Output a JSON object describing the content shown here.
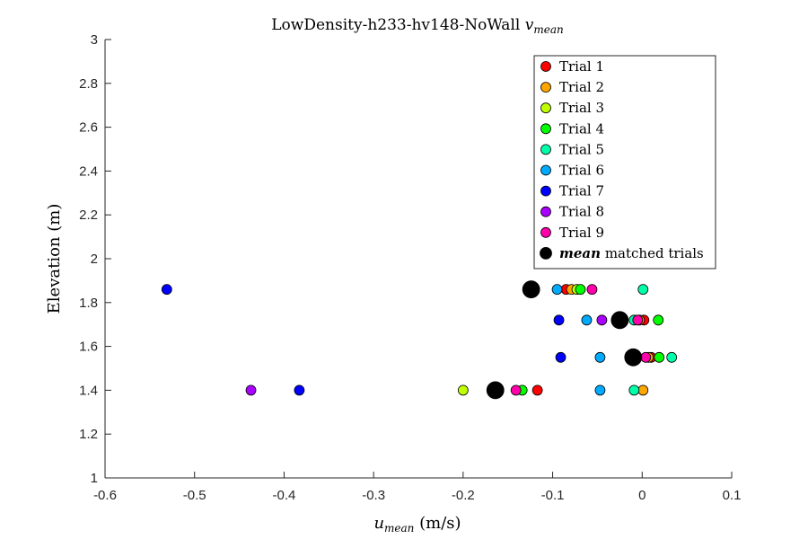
{
  "chart_data": {
    "type": "scatter",
    "title": "LowDensity-h233-hv148-NoWall ",
    "title_math": "v",
    "title_math_sub": "mean",
    "xlabel_math": "u",
    "xlabel_math_sub": "mean",
    "xlabel_unit": " (m/s)",
    "ylabel": "Elevation (m)",
    "xlim": [
      -0.6,
      0.1
    ],
    "ylim": [
      1,
      3
    ],
    "xticks": [
      -0.6,
      -0.5,
      -0.4,
      -0.3,
      -0.2,
      -0.1,
      0,
      0.1
    ],
    "xtick_labels": [
      "-0.6",
      "-0.5",
      "-0.4",
      "-0.3",
      "-0.2",
      "-0.1",
      "0",
      "0.1"
    ],
    "yticks": [
      1,
      1.2,
      1.4,
      1.6,
      1.8,
      2,
      2.2,
      2.4,
      2.6,
      2.8,
      3
    ],
    "ytick_labels": [
      "1",
      "1.2",
      "1.4",
      "1.6",
      "1.8",
      "2",
      "2.2",
      "2.4",
      "2.6",
      "2.8",
      "3"
    ],
    "grid": false,
    "legend_position": "top-right",
    "legend_mean_prefix": "mean",
    "legend_mean_suffix": " matched trials",
    "series": [
      {
        "name": "Trial 1",
        "color": "#ff0000",
        "points": [
          [
            -0.117,
            1.4
          ],
          [
            -0.085,
            1.86
          ],
          [
            0.002,
            1.72
          ],
          [
            0.01,
            1.55
          ]
        ]
      },
      {
        "name": "Trial 2",
        "color": "#ffa500",
        "points": [
          [
            0.001,
            1.4
          ],
          [
            -0.079,
            1.86
          ],
          [
            -0.003,
            1.72
          ],
          [
            0.007,
            1.55
          ]
        ]
      },
      {
        "name": "Trial 3",
        "color": "#bfff00",
        "points": [
          [
            -0.2,
            1.4
          ],
          [
            -0.073,
            1.86
          ]
        ]
      },
      {
        "name": "Trial 4",
        "color": "#00ff00",
        "points": [
          [
            -0.134,
            1.4
          ],
          [
            -0.069,
            1.86
          ],
          [
            0.018,
            1.72
          ],
          [
            0.019,
            1.55
          ]
        ]
      },
      {
        "name": "Trial 5",
        "color": "#00ffaa",
        "points": [
          [
            -0.009,
            1.4
          ],
          [
            0.001,
            1.86
          ],
          [
            -0.009,
            1.72
          ],
          [
            0.033,
            1.55
          ]
        ]
      },
      {
        "name": "Trial 6",
        "color": "#00aaff",
        "points": [
          [
            -0.047,
            1.4
          ],
          [
            -0.095,
            1.86
          ],
          [
            -0.062,
            1.72
          ],
          [
            -0.047,
            1.55
          ]
        ]
      },
      {
        "name": "Trial 7",
        "color": "#0000ff",
        "points": [
          [
            -0.383,
            1.4
          ],
          [
            -0.531,
            1.86
          ],
          [
            -0.093,
            1.72
          ],
          [
            -0.091,
            1.55
          ]
        ]
      },
      {
        "name": "Trial 8",
        "color": "#aa00ff",
        "points": [
          [
            -0.437,
            1.4
          ],
          [
            -0.045,
            1.72
          ]
        ]
      },
      {
        "name": "Trial 9",
        "color": "#ff00aa",
        "points": [
          [
            -0.141,
            1.4
          ],
          [
            -0.056,
            1.86
          ],
          [
            -0.005,
            1.72
          ],
          [
            0.004,
            1.55
          ]
        ]
      }
    ],
    "mean_series": {
      "color": "#000000",
      "points": [
        [
          -0.164,
          1.4
        ],
        [
          -0.124,
          1.86
        ],
        [
          -0.025,
          1.72
        ],
        [
          -0.01,
          1.55
        ]
      ]
    }
  }
}
